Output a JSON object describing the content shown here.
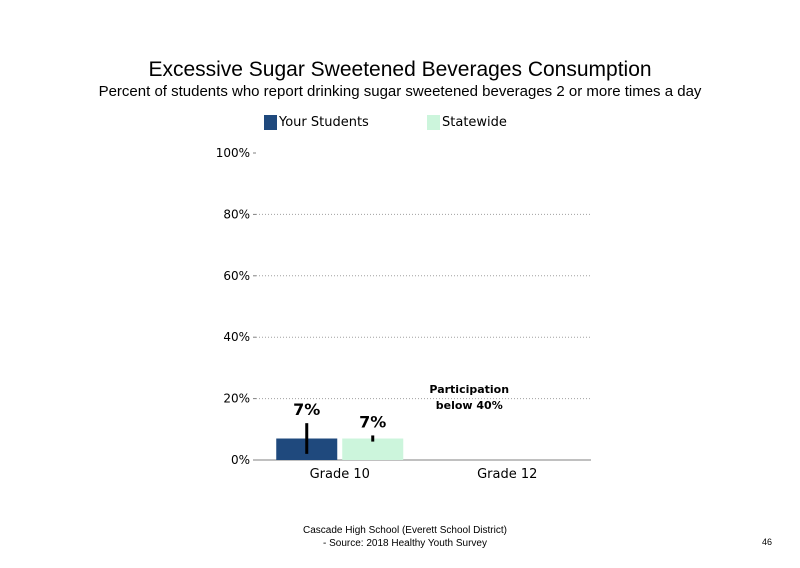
{
  "chart_data": {
    "type": "bar",
    "title": "Excessive Sugar Sweetened Beverages Consumption",
    "subtitle": "Percent of students who report drinking sugar sweetened beverages 2 or more times a day",
    "categories": [
      "Grade 10",
      "Grade 12"
    ],
    "series": [
      {
        "name": "Your Students",
        "color": "#1f497d",
        "values": [
          7,
          null
        ],
        "labels": [
          "7%",
          ""
        ],
        "error": [
          [
            2,
            12
          ],
          null
        ]
      },
      {
        "name": "Statewide",
        "color": "#ccf5dc",
        "values": [
          7,
          null
        ],
        "labels": [
          "7%",
          ""
        ],
        "error": [
          [
            6,
            8
          ],
          null
        ]
      }
    ],
    "ylim": [
      0,
      100
    ],
    "yticks": [
      0,
      20,
      40,
      60,
      80,
      100
    ],
    "ytick_labels": [
      "0%",
      "20%",
      "40%",
      "60%",
      "80%",
      "100%"
    ],
    "grid": true,
    "legend_placement": "top",
    "annotation": {
      "category": "Grade 12",
      "lines": [
        "Participation",
        "below 40%"
      ]
    }
  },
  "footer": {
    "line1": "Cascade High School (Everett School District)",
    "line2": "- Source: 2018 Healthy Youth Survey"
  },
  "page_number": "46"
}
